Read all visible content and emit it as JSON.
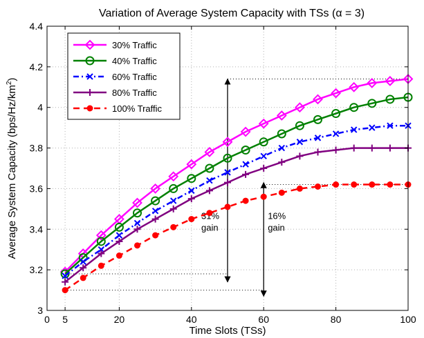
{
  "chart_data": {
    "type": "line",
    "title": "Variation of Average System Capacity with TSs (α = 3)",
    "xlabel": "Time Slots (TSs)",
    "ylabel": "Average System Capacity (bps/Hz/km²)",
    "xlim": [
      0,
      100
    ],
    "ylim": [
      3,
      4.4
    ],
    "xticks": [
      0,
      5,
      20,
      40,
      60,
      80,
      100
    ],
    "yticks": [
      3,
      3.2,
      3.4,
      3.6,
      3.8,
      4,
      4.2,
      4.4
    ],
    "grid": true,
    "legend_position": "top-left",
    "x": [
      5,
      10,
      15,
      20,
      25,
      30,
      35,
      40,
      45,
      50,
      55,
      60,
      65,
      70,
      75,
      80,
      85,
      90,
      95,
      100
    ],
    "series": [
      {
        "name": "30% Traffic",
        "color": "#ff00ff",
        "marker": "diamond",
        "dash": "solid",
        "values": [
          3.19,
          3.28,
          3.37,
          3.45,
          3.53,
          3.6,
          3.66,
          3.72,
          3.78,
          3.83,
          3.88,
          3.92,
          3.96,
          4.0,
          4.04,
          4.07,
          4.1,
          4.12,
          4.13,
          4.14
        ]
      },
      {
        "name": "40% Traffic",
        "color": "#008000",
        "marker": "circle-open",
        "dash": "solid",
        "values": [
          3.18,
          3.26,
          3.34,
          3.41,
          3.48,
          3.54,
          3.6,
          3.65,
          3.7,
          3.75,
          3.79,
          3.83,
          3.87,
          3.91,
          3.94,
          3.97,
          4.0,
          4.02,
          4.04,
          4.05
        ]
      },
      {
        "name": "60% Traffic",
        "color": "#0000ff",
        "marker": "x",
        "dash": "dashdot",
        "values": [
          3.17,
          3.24,
          3.3,
          3.37,
          3.43,
          3.49,
          3.54,
          3.59,
          3.64,
          3.68,
          3.72,
          3.76,
          3.8,
          3.83,
          3.85,
          3.87,
          3.89,
          3.9,
          3.91,
          3.91
        ]
      },
      {
        "name": "80% Traffic",
        "color": "#800080",
        "marker": "plus",
        "dash": "solid",
        "values": [
          3.14,
          3.21,
          3.28,
          3.34,
          3.4,
          3.45,
          3.5,
          3.55,
          3.59,
          3.63,
          3.67,
          3.7,
          3.73,
          3.76,
          3.78,
          3.79,
          3.8,
          3.8,
          3.8,
          3.8
        ]
      },
      {
        "name": "100% Traffic",
        "color": "#ff0000",
        "marker": "dot",
        "dash": "dashed",
        "values": [
          3.1,
          3.16,
          3.22,
          3.27,
          3.32,
          3.37,
          3.41,
          3.45,
          3.48,
          3.51,
          3.54,
          3.56,
          3.58,
          3.6,
          3.61,
          3.62,
          3.62,
          3.62,
          3.62,
          3.62
        ]
      }
    ],
    "annotations": [
      {
        "text_lines": [
          "31%",
          "gain"
        ],
        "arrow_x": 50,
        "y_from": 3.14,
        "y_to": 4.14,
        "ref_low_y": 3.18,
        "ref_low_x0": 5,
        "ref_high_x1": 100
      },
      {
        "text_lines": [
          "16%",
          "gain"
        ],
        "arrow_x": 60,
        "y_from": 3.07,
        "y_to": 3.63,
        "ref_low_y": 3.1,
        "ref_low_x0": 5,
        "ref_high_y": 3.62,
        "ref_high_x1": 100
      }
    ]
  }
}
